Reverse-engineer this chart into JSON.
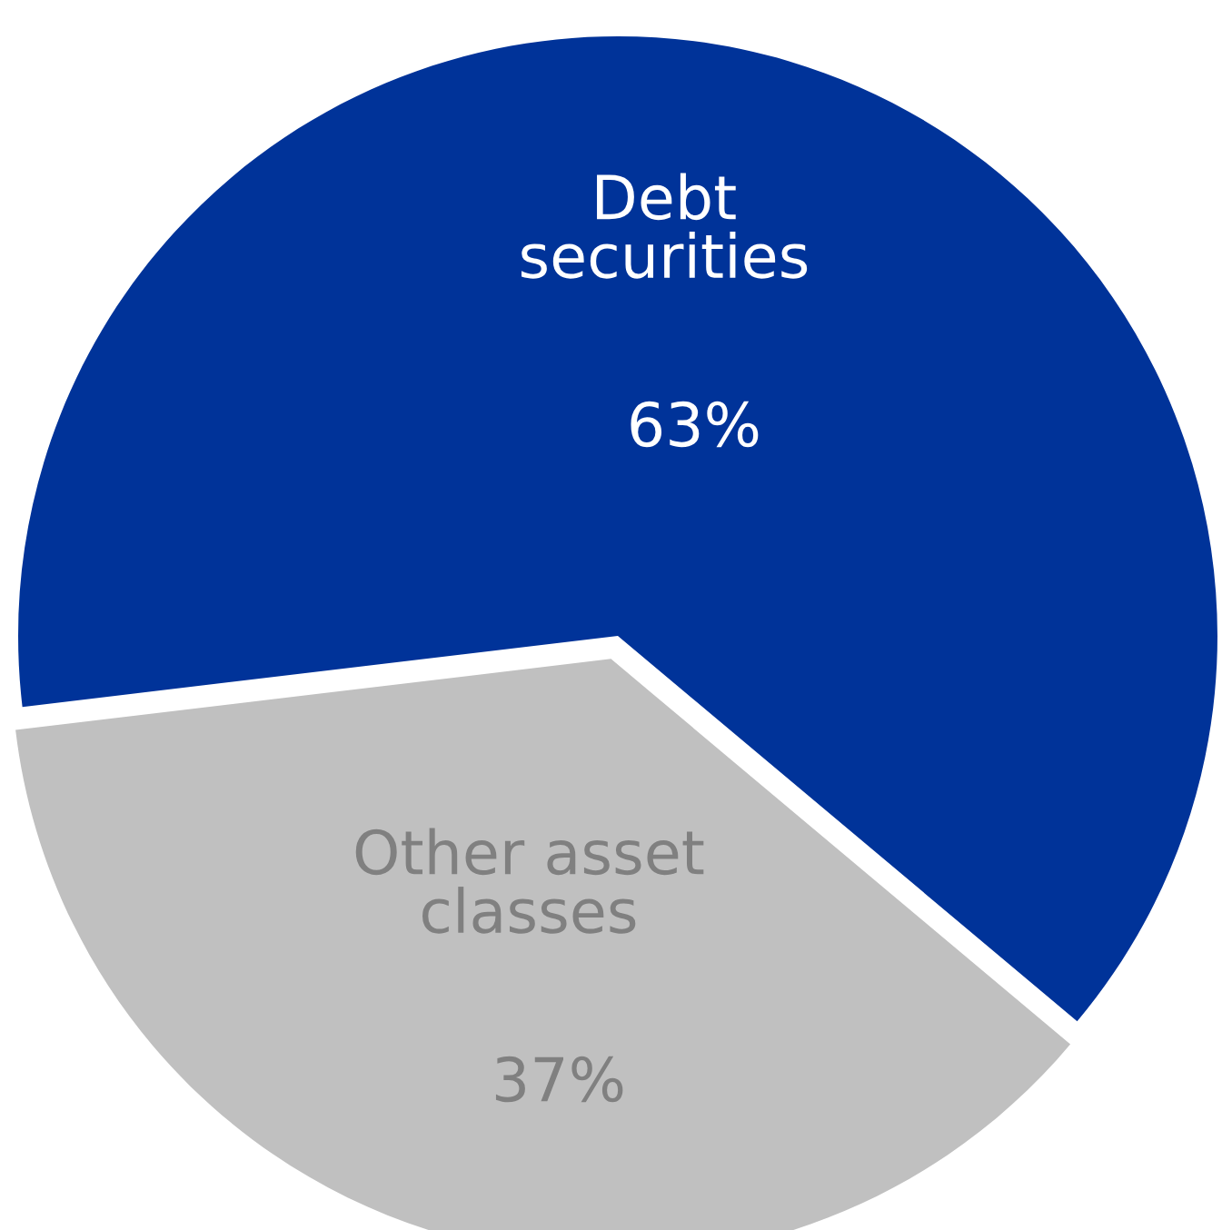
{
  "chart_data": {
    "type": "pie",
    "categories": [
      "Debt securities",
      "Other asset classes"
    ],
    "values": [
      63,
      37
    ],
    "colors": [
      "#003399",
      "#c0c0c0"
    ],
    "value_labels": [
      "63%",
      "37%"
    ]
  }
}
